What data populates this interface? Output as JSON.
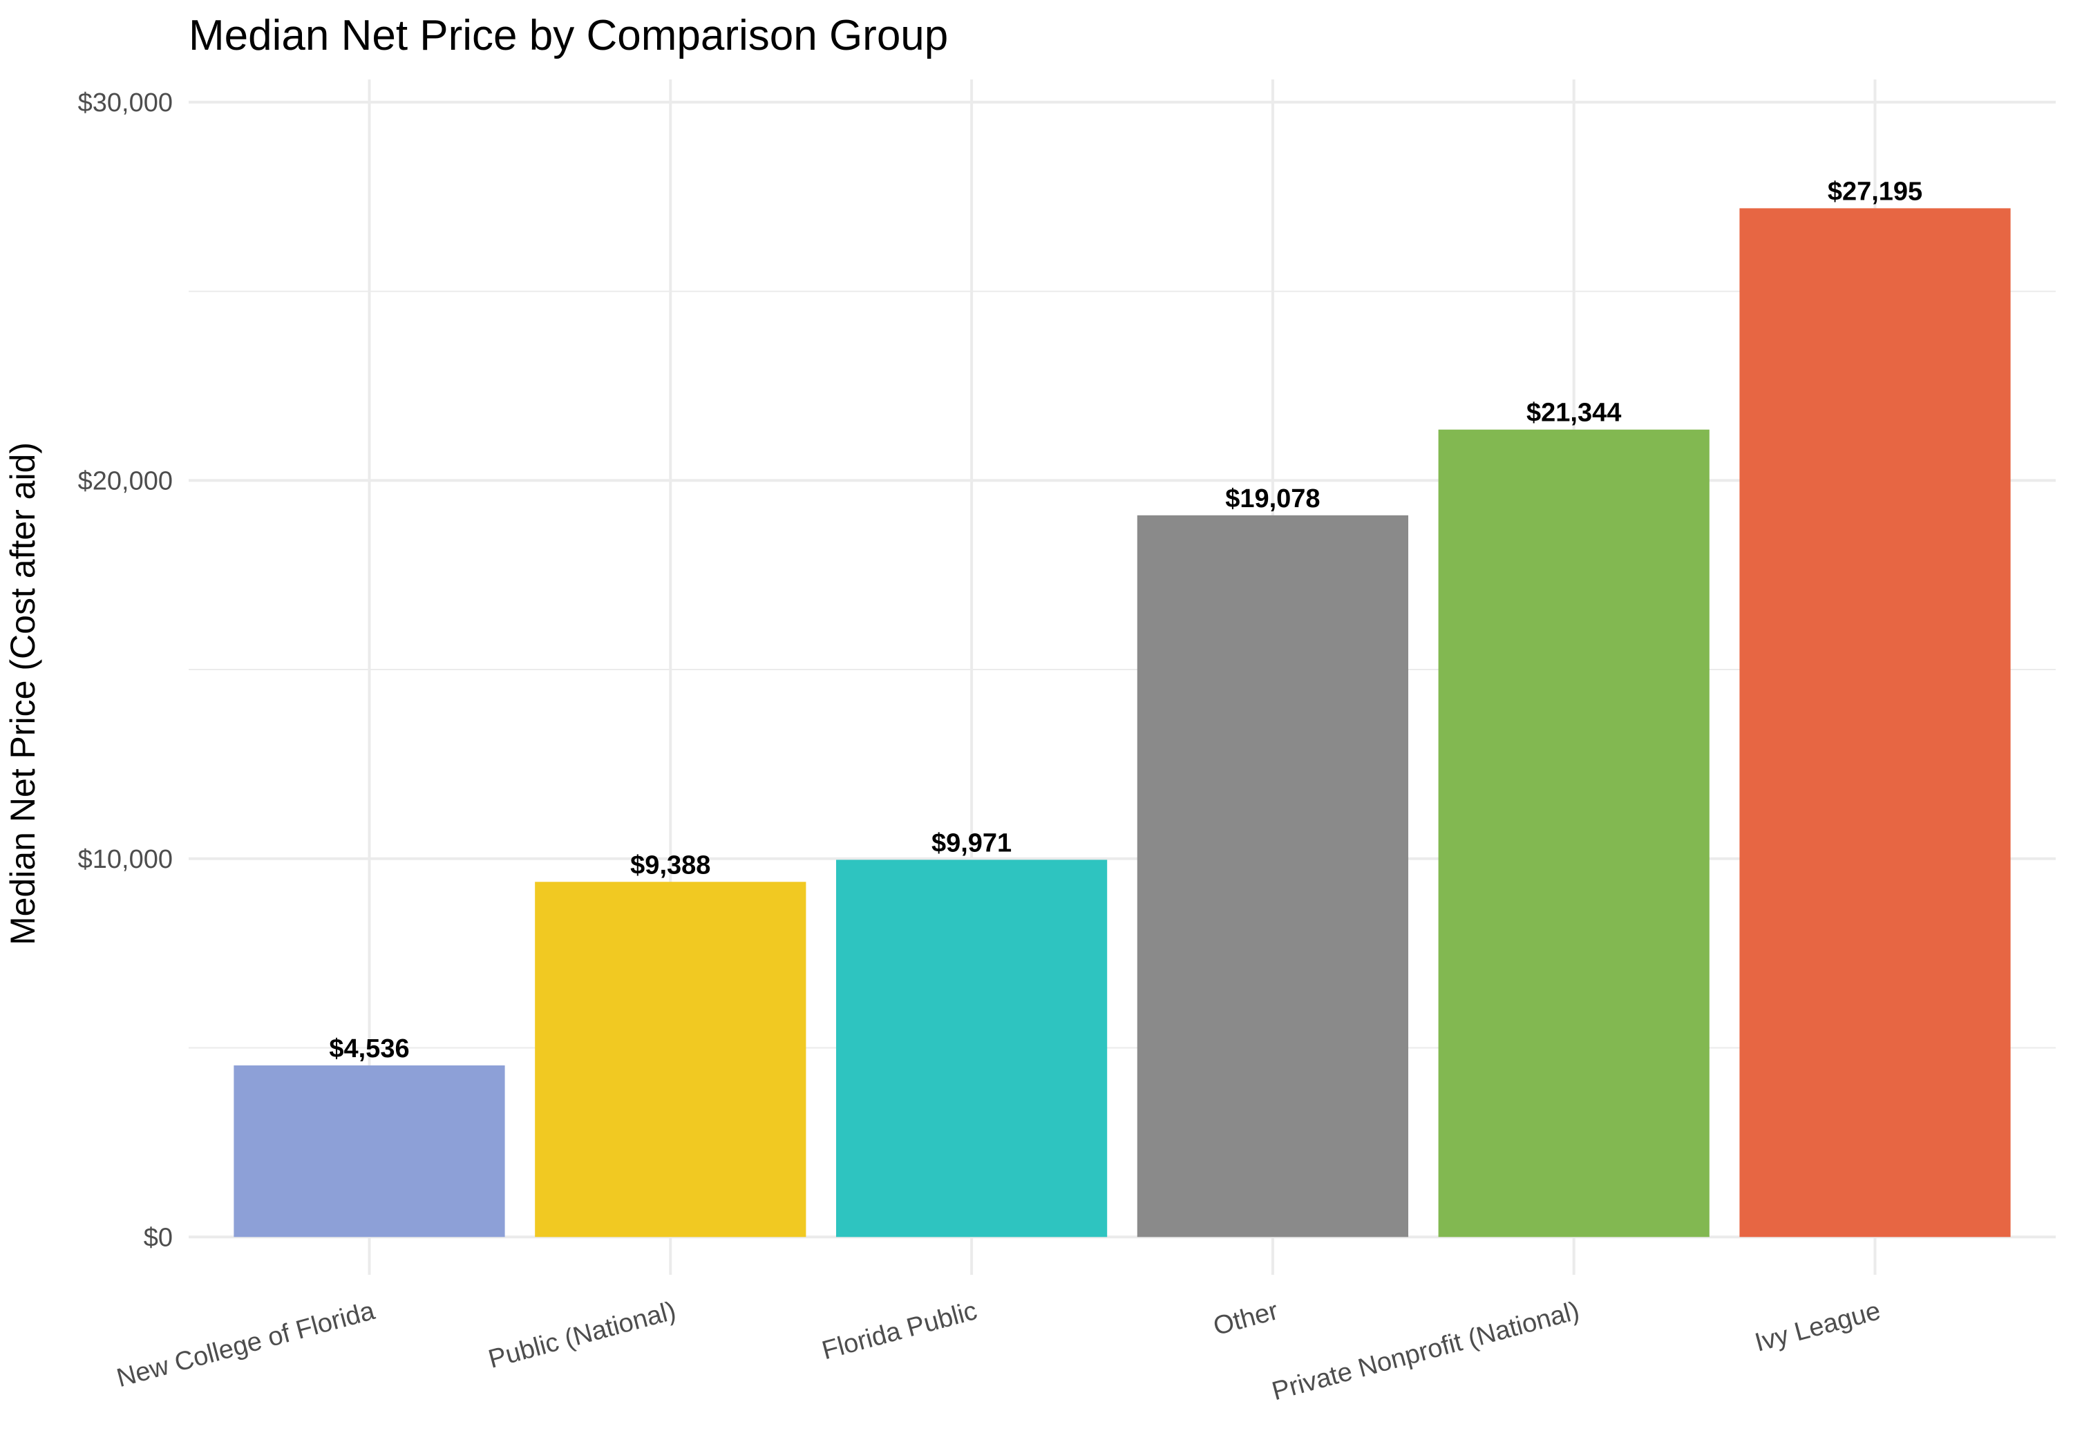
{
  "chart_data": {
    "type": "bar",
    "title": "Median Net Price by Comparison Group",
    "xlabel": "",
    "ylabel": "Median Net Price (Cost after aid)",
    "ylim": [
      -1000,
      30600
    ],
    "yticks": [
      0,
      10000,
      20000,
      30000
    ],
    "ytick_labels": [
      "$0",
      "$10,000",
      "$20,000",
      "$30,000"
    ],
    "grid": true,
    "legend": "none",
    "categories": [
      "New College of Florida",
      "Public (National)",
      "Florida Public",
      "Other",
      "Private Nonprofit (National)",
      "Ivy League"
    ],
    "values": [
      4536,
      9388,
      9971,
      19078,
      21344,
      27195
    ],
    "data_labels": [
      "$4,536",
      "$9,388",
      "$9,971",
      "$19,078",
      "$21,344",
      "$27,195"
    ],
    "colors": [
      "#8da0d7",
      "#f1c922",
      "#2ec4c0",
      "#8a8a8a",
      "#82b851",
      "#e76643"
    ]
  }
}
